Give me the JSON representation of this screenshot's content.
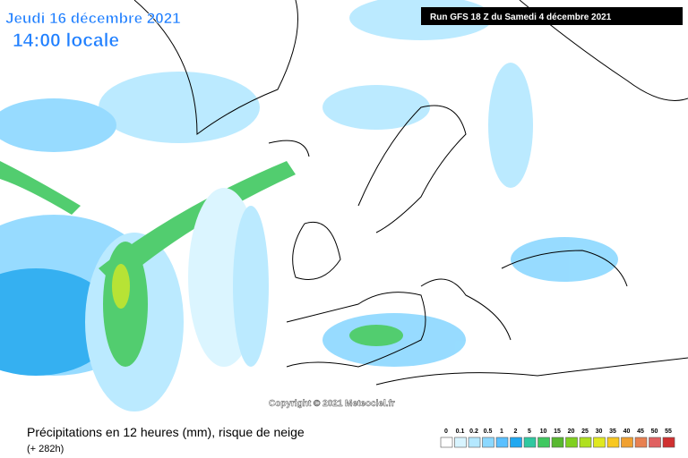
{
  "header": {
    "date": "Jeudi 16 décembre 2021",
    "time": "14:00 locale",
    "run": "Run GFS 18 Z du Samedi 4 décembre 2021"
  },
  "copyright": "Copyright © 2021 Meteociel.fr",
  "footer": {
    "title": "Précipitations en 12 heures (mm), risque de neige",
    "lead": "(+ 282h)"
  },
  "legend": {
    "labels": [
      "0",
      "0.1",
      "0.2",
      "0.5",
      "1",
      "2",
      "5",
      "10",
      "15",
      "20",
      "25",
      "30",
      "35",
      "40",
      "45",
      "50",
      "55"
    ],
    "colors": [
      "#ffffff",
      "#d8f4ff",
      "#b4e8ff",
      "#8cd8ff",
      "#5ac0ff",
      "#20a8f0",
      "#30c8a0",
      "#40c860",
      "#58b830",
      "#80d020",
      "#b0e020",
      "#e0e820",
      "#f8c820",
      "#f0a030",
      "#e88050",
      "#e06060",
      "#d03030"
    ]
  }
}
